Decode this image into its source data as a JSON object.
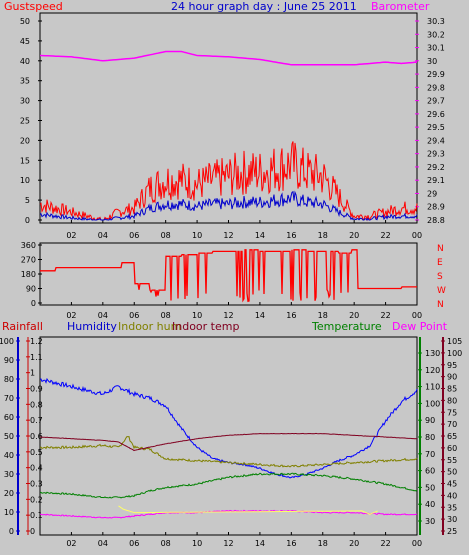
{
  "chart_data": [
    {
      "type": "line",
      "title": "24 hour graph day : June 25 2011",
      "left_label": "Gustspeed",
      "right_label": "Barometer",
      "x_ticks": [
        "02",
        "04",
        "06",
        "08",
        "10",
        "12",
        "14",
        "16",
        "18",
        "20",
        "22",
        "00"
      ],
      "left_ticks": [
        "0",
        "5",
        "10",
        "15",
        "20",
        "25",
        "30",
        "35",
        "40",
        "45",
        "50"
      ],
      "right_ticks": [
        "28.8",
        "28.9",
        "29",
        "29.1",
        "29.2",
        "29.3",
        "29.4",
        "29.5",
        "29.6",
        "29.7",
        "29.8",
        "29.9",
        "30",
        "30.1",
        "30.2",
        "30.3"
      ],
      "ylim_left": [
        0,
        50
      ],
      "ylim_right": [
        28.8,
        30.3
      ],
      "colors": {
        "gust": "#ff0000",
        "wind": "#0000cc",
        "baro": "#ff00ff"
      },
      "series": [
        {
          "key": "baro",
          "x": [
            0,
            2,
            4,
            6,
            8,
            9,
            10,
            12,
            14,
            16,
            18,
            20,
            22,
            23,
            24
          ],
          "values": [
            30.04,
            30.03,
            30.0,
            30.02,
            30.07,
            30.07,
            30.04,
            30.03,
            30.01,
            29.97,
            29.97,
            29.97,
            29.99,
            29.98,
            29.99
          ]
        },
        {
          "key": "gust",
          "x": [
            0,
            1,
            2,
            3,
            4,
            5,
            6,
            7,
            8,
            9,
            10,
            11,
            12,
            13,
            14,
            15,
            16,
            17,
            18,
            19,
            20,
            21,
            22,
            23,
            24
          ],
          "values": [
            4,
            3,
            2,
            1,
            0,
            2,
            3,
            8,
            10,
            10,
            9,
            10,
            11,
            12,
            12,
            13,
            14,
            12,
            11,
            6,
            1,
            1,
            2,
            3,
            3
          ]
        },
        {
          "key": "wind",
          "x": [
            0,
            1,
            2,
            3,
            4,
            5,
            6,
            7,
            8,
            9,
            10,
            11,
            12,
            13,
            14,
            15,
            16,
            17,
            18,
            19,
            20,
            21,
            22,
            23,
            24
          ],
          "values": [
            1.5,
            1,
            0.5,
            0.2,
            0,
            0.5,
            1,
            3,
            4,
            4,
            3.5,
            4,
            4,
            4.5,
            4.5,
            5,
            5.5,
            4.5,
            4,
            2,
            0.3,
            0.3,
            0.8,
            1,
            1
          ]
        }
      ]
    },
    {
      "type": "scatter",
      "left_ticks": [
        "0",
        "90",
        "180",
        "270",
        "360"
      ],
      "right_labels": [
        "N",
        "W",
        "S",
        "E",
        "N"
      ],
      "ylim": [
        0,
        360
      ],
      "color": "#ff0000",
      "x": [
        0,
        1,
        2,
        3,
        4,
        5,
        5.2,
        6,
        7,
        8,
        9,
        10,
        11,
        12,
        13,
        14,
        15,
        16,
        17,
        18,
        19,
        19.8,
        20.2,
        21,
        22,
        23,
        24
      ],
      "values": [
        200,
        220,
        220,
        220,
        220,
        220,
        250,
        120,
        80,
        290,
        300,
        310,
        320,
        320,
        330,
        320,
        320,
        330,
        320,
        320,
        310,
        330,
        90,
        90,
        90,
        100,
        110
      ]
    },
    {
      "type": "line",
      "header_labels": {
        "rainfall": "Rainfall",
        "humidity": "Humidity",
        "indoor_hum": "Indoor hum",
        "indoor_temp": "Indoor temp",
        "temperature": "Temperature",
        "dew_point": "Dew Point"
      },
      "humidity_ticks": [
        "0",
        "10",
        "20",
        "30",
        "40",
        "50",
        "60",
        "70",
        "80",
        "90",
        "100"
      ],
      "rain_ticks": [
        "0",
        "0.1",
        "0.2",
        "0.3",
        "0.4",
        "0.5",
        "0.6",
        "0.7",
        "0.8",
        "0.9",
        "1",
        "1.1",
        "1.2"
      ],
      "temp_ticks": [
        "30",
        "40",
        "50",
        "60",
        "70",
        "80",
        "90",
        "100",
        "110",
        "120",
        "130"
      ],
      "dew_ticks": [
        "25",
        "30",
        "35",
        "40",
        "45",
        "50",
        "55",
        "60",
        "65",
        "70",
        "75",
        "80",
        "85",
        "90",
        "95",
        "100",
        "105"
      ],
      "ylim_humidity": [
        0,
        100
      ],
      "ylim_temp": [
        30,
        130
      ],
      "colors": {
        "humidity": "#0000ff",
        "indoor_hum": "#808000",
        "indoor_temp": "#800020",
        "temperature": "#008000",
        "dew_point": "#ff00ff",
        "rainfall": "#ffff66"
      },
      "series": [
        {
          "key": "humidity",
          "x": [
            0,
            1,
            2,
            3,
            4,
            5,
            6,
            7,
            8,
            9,
            10,
            11,
            12,
            13,
            14,
            15,
            16,
            17,
            18,
            19,
            20,
            21,
            22,
            23,
            24
          ],
          "values": [
            80,
            78,
            76,
            74,
            72,
            76,
            72,
            70,
            66,
            54,
            44,
            38,
            36,
            35,
            33,
            30,
            28,
            30,
            33,
            37,
            40,
            45,
            58,
            68,
            74
          ]
        },
        {
          "key": "indoor_hum",
          "x": [
            0,
            2,
            4,
            5,
            5.6,
            6,
            7,
            8,
            10,
            12,
            14,
            16,
            18,
            20,
            22,
            24
          ],
          "values": [
            44,
            44,
            45,
            44,
            50,
            44,
            43,
            38,
            37,
            36,
            35,
            34,
            35,
            36,
            37,
            38
          ]
        },
        {
          "key": "indoor_temp",
          "x": [
            0,
            2,
            4,
            5,
            6,
            7,
            8,
            10,
            12,
            14,
            16,
            18,
            20,
            22,
            24
          ],
          "values": [
            80,
            79,
            78,
            77,
            72,
            74,
            76,
            79,
            81,
            82,
            82,
            82,
            81,
            80,
            79
          ]
        },
        {
          "key": "temperature",
          "x": [
            0,
            2,
            4,
            5,
            6,
            7,
            8,
            10,
            12,
            14,
            16,
            18,
            20,
            22,
            24
          ],
          "values": [
            47,
            46,
            44,
            44,
            45,
            48,
            50,
            52,
            56,
            58,
            58,
            57,
            55,
            52,
            48
          ]
        },
        {
          "key": "dew_point",
          "x": [
            0,
            2,
            4,
            5,
            6,
            7,
            8,
            10,
            12,
            14,
            16,
            18,
            20,
            22,
            24
          ],
          "values": [
            34,
            33,
            32,
            32,
            33,
            34,
            35,
            35,
            36,
            36,
            36,
            35,
            35,
            34,
            34
          ]
        },
        {
          "key": "rainfall",
          "x": [
            5,
            5.3,
            6,
            20.5,
            21,
            21.5
          ],
          "values": [
            39,
            37,
            35,
            36,
            34,
            36
          ]
        }
      ]
    }
  ]
}
